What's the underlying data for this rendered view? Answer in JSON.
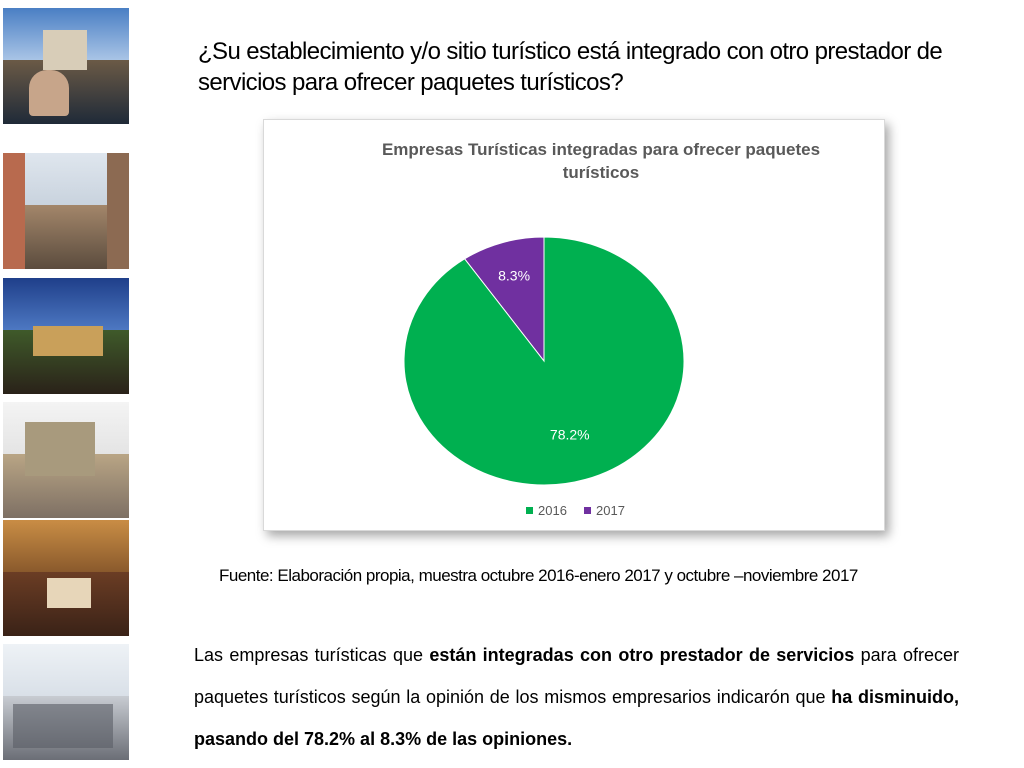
{
  "title": "¿Su establecimiento y/o sitio turístico está integrado con otro prestador de servicios para ofrecer paquetes turísticos?",
  "chart_data": {
    "type": "pie",
    "title": "Empresas Turísticas integradas para ofrecer paquetes turísticos",
    "categories": [
      "2016",
      "2017"
    ],
    "values": [
      78.2,
      8.3
    ],
    "data_labels": [
      "78.2%",
      "8.3%"
    ],
    "colors": [
      "#00b050",
      "#7030a0"
    ],
    "legend_position": "bottom"
  },
  "source": "Fuente: Elaboración propia, muestra octubre 2016-enero 2017 y octubre –noviembre 2017",
  "body": {
    "part1": "Las empresas turísticas que ",
    "bold1": "están integradas con otro prestador de servicios",
    "part2": " para ofrecer paquetes turísticos según la opinión de los mismos empresarios indicarón que ",
    "bold2": "ha disminuido, pasando del 78.2% al 8.3% de las opiniones."
  }
}
